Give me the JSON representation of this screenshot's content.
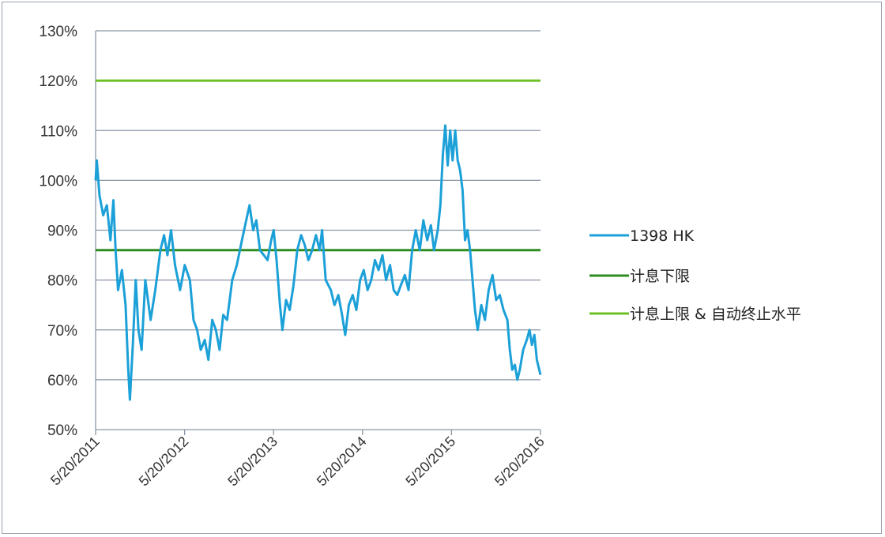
{
  "chart_data": {
    "type": "line",
    "title": "",
    "xlabel": "",
    "ylabel": "",
    "x_range": [
      "2011-05-20",
      "2016-05-20"
    ],
    "x_ticks": [
      "5/20/2011",
      "5/20/2012",
      "5/20/2013",
      "5/20/2014",
      "5/20/2015",
      "5/20/2016"
    ],
    "ylim": [
      50,
      130
    ],
    "y_ticks": [
      "50%",
      "60%",
      "70%",
      "80%",
      "90%",
      "100%",
      "110%",
      "120%",
      "130%"
    ],
    "y_tick_values": [
      50,
      60,
      70,
      80,
      90,
      100,
      110,
      120,
      130
    ],
    "grid": true,
    "legend_position": "right",
    "series": [
      {
        "name": "1398 HK",
        "color": "#1ca0d8",
        "points": [
          [
            "2011-05-20",
            100
          ],
          [
            "2011-05-25",
            104
          ],
          [
            "2011-06-05",
            97
          ],
          [
            "2011-06-20",
            93
          ],
          [
            "2011-07-05",
            95
          ],
          [
            "2011-07-20",
            88
          ],
          [
            "2011-08-01",
            96
          ],
          [
            "2011-08-10",
            86
          ],
          [
            "2011-08-20",
            78
          ],
          [
            "2011-09-05",
            82
          ],
          [
            "2011-09-20",
            75
          ],
          [
            "2011-10-01",
            62
          ],
          [
            "2011-10-08",
            56
          ],
          [
            "2011-10-20",
            67
          ],
          [
            "2011-11-01",
            80
          ],
          [
            "2011-11-12",
            70
          ],
          [
            "2011-11-25",
            66
          ],
          [
            "2011-12-10",
            80
          ],
          [
            "2012-01-01",
            72
          ],
          [
            "2012-01-20",
            78
          ],
          [
            "2012-02-10",
            86
          ],
          [
            "2012-02-25",
            89
          ],
          [
            "2012-03-10",
            85
          ],
          [
            "2012-03-25",
            90
          ],
          [
            "2012-04-10",
            83
          ],
          [
            "2012-05-01",
            78
          ],
          [
            "2012-05-20",
            83
          ],
          [
            "2012-06-10",
            80
          ],
          [
            "2012-06-25",
            72
          ],
          [
            "2012-07-10",
            70
          ],
          [
            "2012-07-25",
            66
          ],
          [
            "2012-08-10",
            68
          ],
          [
            "2012-08-25",
            64
          ],
          [
            "2012-09-10",
            72
          ],
          [
            "2012-09-25",
            70
          ],
          [
            "2012-10-10",
            66
          ],
          [
            "2012-10-25",
            73
          ],
          [
            "2012-11-10",
            72
          ],
          [
            "2012-12-01",
            80
          ],
          [
            "2012-12-20",
            83
          ],
          [
            "2013-01-10",
            88
          ],
          [
            "2013-02-01",
            93
          ],
          [
            "2013-02-10",
            95
          ],
          [
            "2013-02-25",
            90
          ],
          [
            "2013-03-10",
            92
          ],
          [
            "2013-03-25",
            86
          ],
          [
            "2013-04-10",
            85
          ],
          [
            "2013-04-25",
            84
          ],
          [
            "2013-05-10",
            88
          ],
          [
            "2013-05-20",
            90
          ],
          [
            "2013-06-01",
            84
          ],
          [
            "2013-06-15",
            75
          ],
          [
            "2013-06-25",
            70
          ],
          [
            "2013-07-10",
            76
          ],
          [
            "2013-07-25",
            74
          ],
          [
            "2013-08-10",
            79
          ],
          [
            "2013-08-25",
            86
          ],
          [
            "2013-09-10",
            89
          ],
          [
            "2013-09-25",
            87
          ],
          [
            "2013-10-10",
            84
          ],
          [
            "2013-10-25",
            86
          ],
          [
            "2013-11-10",
            89
          ],
          [
            "2013-11-25",
            86
          ],
          [
            "2013-12-05",
            90
          ],
          [
            "2013-12-20",
            80
          ],
          [
            "2014-01-10",
            78
          ],
          [
            "2014-01-25",
            75
          ],
          [
            "2014-02-10",
            77
          ],
          [
            "2014-02-25",
            73
          ],
          [
            "2014-03-10",
            69
          ],
          [
            "2014-03-25",
            75
          ],
          [
            "2014-04-10",
            77
          ],
          [
            "2014-04-25",
            74
          ],
          [
            "2014-05-10",
            80
          ],
          [
            "2014-05-25",
            82
          ],
          [
            "2014-06-10",
            78
          ],
          [
            "2014-06-25",
            80
          ],
          [
            "2014-07-10",
            84
          ],
          [
            "2014-07-25",
            82
          ],
          [
            "2014-08-10",
            85
          ],
          [
            "2014-08-25",
            80
          ],
          [
            "2014-09-10",
            83
          ],
          [
            "2014-09-25",
            78
          ],
          [
            "2014-10-10",
            77
          ],
          [
            "2014-10-25",
            79
          ],
          [
            "2014-11-10",
            81
          ],
          [
            "2014-11-25",
            78
          ],
          [
            "2014-12-10",
            86
          ],
          [
            "2014-12-25",
            90
          ],
          [
            "2015-01-10",
            86
          ],
          [
            "2015-01-25",
            92
          ],
          [
            "2015-02-10",
            88
          ],
          [
            "2015-02-25",
            91
          ],
          [
            "2015-03-10",
            86
          ],
          [
            "2015-03-25",
            90
          ],
          [
            "2015-04-05",
            95
          ],
          [
            "2015-04-15",
            105
          ],
          [
            "2015-04-25",
            111
          ],
          [
            "2015-05-05",
            103
          ],
          [
            "2015-05-15",
            110
          ],
          [
            "2015-05-25",
            104
          ],
          [
            "2015-06-05",
            110
          ],
          [
            "2015-06-15",
            104
          ],
          [
            "2015-06-25",
            102
          ],
          [
            "2015-07-05",
            98
          ],
          [
            "2015-07-15",
            88
          ],
          [
            "2015-07-25",
            90
          ],
          [
            "2015-08-05",
            86
          ],
          [
            "2015-08-15",
            80
          ],
          [
            "2015-08-25",
            74
          ],
          [
            "2015-09-05",
            70
          ],
          [
            "2015-09-20",
            75
          ],
          [
            "2015-10-05",
            72
          ],
          [
            "2015-10-20",
            78
          ],
          [
            "2015-11-05",
            81
          ],
          [
            "2015-11-20",
            76
          ],
          [
            "2015-12-05",
            77
          ],
          [
            "2015-12-20",
            74
          ],
          [
            "2016-01-05",
            72
          ],
          [
            "2016-01-15",
            66
          ],
          [
            "2016-01-25",
            62
          ],
          [
            "2016-02-05",
            63
          ],
          [
            "2016-02-15",
            60
          ],
          [
            "2016-02-25",
            62
          ],
          [
            "2016-03-10",
            66
          ],
          [
            "2016-03-25",
            68
          ],
          [
            "2016-04-05",
            70
          ],
          [
            "2016-04-15",
            67
          ],
          [
            "2016-04-25",
            69
          ],
          [
            "2016-05-05",
            64
          ],
          [
            "2016-05-20",
            61
          ]
        ]
      },
      {
        "name": "计息下限",
        "color": "#2e8b22",
        "points": [
          [
            "2011-05-20",
            86
          ],
          [
            "2016-05-20",
            86
          ]
        ]
      },
      {
        "name": "计息上限 & 自动终止水平",
        "color": "#6cc024",
        "points": [
          [
            "2011-05-20",
            120
          ],
          [
            "2016-05-20",
            120
          ]
        ]
      }
    ]
  }
}
